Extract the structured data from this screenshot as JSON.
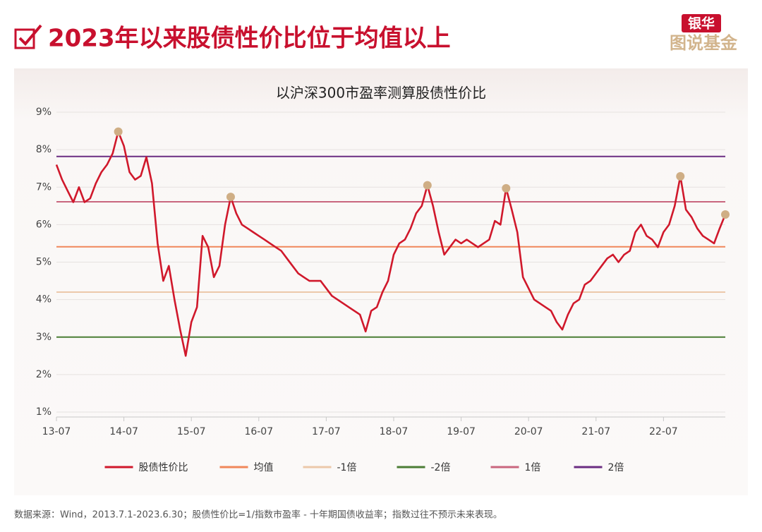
{
  "header": {
    "title": "2023年以来股债性价比位于均值以上",
    "logo_top": "银华",
    "logo_bottom": "图说基金"
  },
  "footer": "数据来源：Wind，2013.7.1-2023.6.30；股债性价比=1/指数市盈率 - 十年期国债收益率；指数过往不预示未来表现。",
  "chart_data": {
    "type": "line",
    "title": "以沪深300市盈率测算股债性价比",
    "x": [
      "13-07",
      "13-08",
      "13-09",
      "13-10",
      "13-11",
      "13-12",
      "14-01",
      "14-02",
      "14-03",
      "14-04",
      "14-05",
      "14-06",
      "14-07",
      "14-08",
      "14-09",
      "14-10",
      "14-11",
      "14-12",
      "15-01",
      "15-02",
      "15-03",
      "15-04",
      "15-05",
      "15-06",
      "15-07",
      "15-08",
      "15-09",
      "15-10",
      "15-11",
      "15-12",
      "16-01",
      "16-02",
      "16-03",
      "16-04",
      "16-05",
      "16-06",
      "16-07",
      "16-08",
      "16-09",
      "16-10",
      "16-11",
      "16-12",
      "17-01",
      "17-02",
      "17-03",
      "17-04",
      "17-05",
      "17-06",
      "17-07",
      "17-08",
      "17-09",
      "17-10",
      "17-11",
      "17-12",
      "18-01",
      "18-02",
      "18-03",
      "18-04",
      "18-05",
      "18-06",
      "18-07",
      "18-08",
      "18-09",
      "18-10",
      "18-11",
      "18-12",
      "19-01",
      "19-02",
      "19-03",
      "19-04",
      "19-05",
      "19-06",
      "19-07",
      "19-08",
      "19-09",
      "19-10",
      "19-11",
      "19-12",
      "20-01",
      "20-02",
      "20-03",
      "20-04",
      "20-05",
      "20-06",
      "20-07",
      "20-08",
      "20-09",
      "20-10",
      "20-11",
      "20-12",
      "21-01",
      "21-02",
      "21-03",
      "21-04",
      "21-05",
      "21-06",
      "21-07",
      "21-08",
      "21-09",
      "21-10",
      "21-11",
      "21-12",
      "22-01",
      "22-02",
      "22-03",
      "22-04",
      "22-05",
      "22-06",
      "22-07",
      "22-08",
      "22-09",
      "22-10",
      "22-11",
      "22-12",
      "23-01",
      "23-02",
      "23-03",
      "23-04",
      "23-05",
      "23-06"
    ],
    "series": [
      {
        "name": "股债性价比",
        "color": "#d0182b",
        "values": [
          7.6,
          7.2,
          6.9,
          6.6,
          7.0,
          6.6,
          6.7,
          7.1,
          7.4,
          7.6,
          7.9,
          8.48,
          8.1,
          7.4,
          7.2,
          7.3,
          7.8,
          7.1,
          5.5,
          4.5,
          4.9,
          4.0,
          3.2,
          2.5,
          3.4,
          3.8,
          5.7,
          5.4,
          4.6,
          4.9,
          6.0,
          6.74,
          6.3,
          6.0,
          5.9,
          5.8,
          5.7,
          5.6,
          5.5,
          5.4,
          5.3,
          5.1,
          4.9,
          4.7,
          4.6,
          4.5,
          4.5,
          4.5,
          4.3,
          4.1,
          4.0,
          3.9,
          3.8,
          3.7,
          3.6,
          3.15,
          3.7,
          3.8,
          4.2,
          4.5,
          5.2,
          5.5,
          5.6,
          5.9,
          6.3,
          6.5,
          7.05,
          6.5,
          5.8,
          5.2,
          5.4,
          5.6,
          5.5,
          5.6,
          5.5,
          5.4,
          5.5,
          5.6,
          6.1,
          6.0,
          6.97,
          6.4,
          5.8,
          4.6,
          4.3,
          4.0,
          3.9,
          3.8,
          3.7,
          3.4,
          3.2,
          3.6,
          3.9,
          4.0,
          4.4,
          4.5,
          4.7,
          4.9,
          5.1,
          5.2,
          5.0,
          5.2,
          5.3,
          5.8,
          6.0,
          5.7,
          5.6,
          5.4,
          5.8,
          6.0,
          6.5,
          7.29,
          6.4,
          6.2,
          5.9,
          5.7,
          5.6,
          5.5,
          5.9,
          6.27
        ]
      }
    ],
    "reference_lines": [
      {
        "name": "均值",
        "color": "#f0875a",
        "value": 5.41
      },
      {
        "name": "-1倍",
        "color": "#ecc9aa",
        "value": 4.2
      },
      {
        "name": "-2倍",
        "color": "#4b7d35",
        "value": 3.0
      },
      {
        "name": "1倍",
        "color": "#c9667e",
        "value": 6.61
      },
      {
        "name": "2倍",
        "color": "#6b2d82",
        "value": 7.82
      }
    ],
    "markers": {
      "color": "#cfae85",
      "x": [
        "14-06",
        "16-02",
        "19-01",
        "20-03",
        "22-10",
        "23-06"
      ],
      "values": [
        8.48,
        6.74,
        7.05,
        6.97,
        7.29,
        6.27
      ]
    },
    "ylim": [
      1,
      9
    ],
    "yticks": [
      {
        "value": 1,
        "label": "1%"
      },
      {
        "value": 2,
        "label": "2%"
      },
      {
        "value": 3,
        "label": "3%"
      },
      {
        "value": 4,
        "label": "4%"
      },
      {
        "value": 5,
        "label": "5%"
      },
      {
        "value": 6,
        "label": "6%"
      },
      {
        "value": 7,
        "label": "7%"
      },
      {
        "value": 8,
        "label": "8%"
      },
      {
        "value": 9,
        "label": "9%"
      }
    ],
    "grid": true
  }
}
